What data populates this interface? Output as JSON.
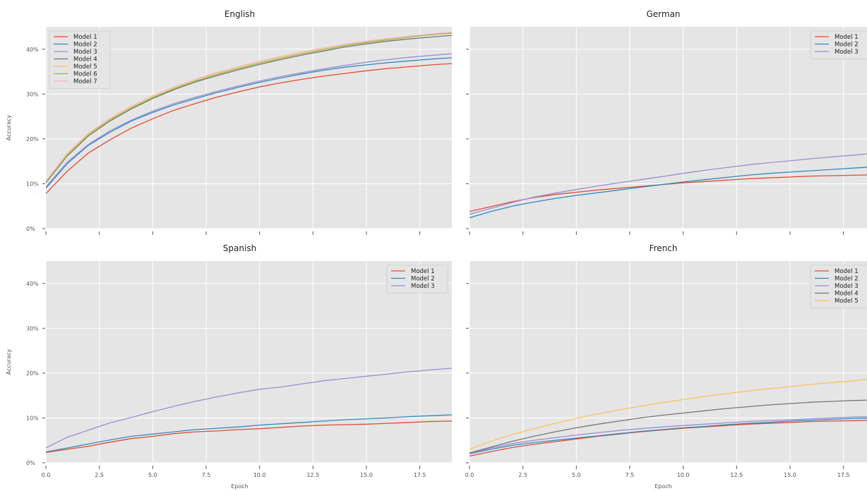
{
  "chart_data": [
    {
      "type": "line",
      "title": "English",
      "xlabel": "",
      "ylabel": "Accuracy",
      "xlim": [
        0,
        19
      ],
      "ylim": [
        0,
        45
      ],
      "x_ticks": [
        0,
        2.5,
        5,
        7.5,
        10,
        12.5,
        15,
        17.5
      ],
      "x_tick_labels": [],
      "y_ticks": [
        0,
        10,
        20,
        30,
        40
      ],
      "y_tick_labels": [
        "0%",
        "10%",
        "20%",
        "30%",
        "40%"
      ],
      "legend_position": "upper-left",
      "x": [
        0,
        1,
        2,
        3,
        4,
        5,
        6,
        7,
        8,
        9,
        10,
        11,
        12,
        13,
        14,
        15,
        16,
        17,
        18,
        19
      ],
      "series": [
        {
          "name": "Model 1",
          "color": "#E24A33",
          "values": [
            7.8,
            12.8,
            16.9,
            19.8,
            22.4,
            24.5,
            26.4,
            27.9,
            29.3,
            30.5,
            31.6,
            32.5,
            33.3,
            34.0,
            34.6,
            35.2,
            35.7,
            36.1,
            36.5,
            36.8
          ]
        },
        {
          "name": "Model 2",
          "color": "#348ABD",
          "values": [
            9.0,
            14.5,
            18.6,
            21.5,
            24.0,
            25.9,
            27.6,
            29.0,
            30.3,
            31.5,
            32.6,
            33.6,
            34.5,
            35.3,
            36.0,
            36.5,
            37.0,
            37.4,
            37.8,
            38.1
          ]
        },
        {
          "name": "Model 3",
          "color": "#988ED5",
          "values": [
            9.3,
            14.8,
            18.8,
            21.8,
            24.2,
            26.2,
            27.9,
            29.3,
            30.6,
            31.8,
            32.9,
            33.9,
            34.8,
            35.6,
            36.4,
            37.1,
            37.7,
            38.2,
            38.6,
            39.0
          ]
        },
        {
          "name": "Model 4",
          "color": "#777777",
          "values": [
            10.2,
            16.2,
            20.7,
            24.0,
            26.7,
            29.0,
            31.0,
            32.7,
            34.1,
            35.4,
            36.6,
            37.7,
            38.7,
            39.6,
            40.5,
            41.2,
            41.8,
            42.3,
            42.7,
            43.1
          ]
        },
        {
          "name": "Model 5",
          "color": "#FBC15E",
          "values": [
            10.5,
            16.7,
            21.2,
            24.5,
            27.2,
            29.5,
            31.5,
            33.2,
            34.7,
            36.0,
            37.2,
            38.3,
            39.3,
            40.2,
            41.0,
            41.7,
            42.3,
            42.8,
            43.3,
            43.8
          ]
        },
        {
          "name": "Model 6",
          "color": "#8EBA42",
          "values": [
            10.3,
            16.4,
            20.9,
            24.2,
            26.9,
            29.2,
            31.2,
            32.9,
            34.4,
            35.7,
            36.9,
            38.0,
            39.0,
            39.9,
            40.8,
            41.5,
            42.1,
            42.7,
            43.2,
            43.6
          ]
        },
        {
          "name": "Model 7",
          "color": "#FFB5B8",
          "values": [
            10.6,
            16.8,
            21.3,
            24.6,
            27.3,
            29.6,
            31.6,
            33.3,
            34.8,
            36.1,
            37.3,
            38.4,
            39.4,
            40.3,
            41.1,
            41.8,
            42.4,
            42.9,
            43.4,
            43.8
          ]
        }
      ]
    },
    {
      "type": "line",
      "title": "German",
      "xlabel": "",
      "ylabel": "",
      "xlim": [
        0,
        19
      ],
      "ylim": [
        0,
        45
      ],
      "x_ticks": [
        0,
        2.5,
        5,
        7.5,
        10,
        12.5,
        15,
        17.5
      ],
      "x_tick_labels": [],
      "y_ticks": [
        0,
        10,
        20,
        30,
        40
      ],
      "y_tick_labels": [],
      "legend_position": "upper-right",
      "x": [
        0,
        1,
        2,
        3,
        4,
        5,
        6,
        7,
        8,
        9,
        10,
        11,
        12,
        13,
        14,
        15,
        16,
        17,
        18,
        19
      ],
      "series": [
        {
          "name": "Model 1",
          "color": "#E24A33",
          "values": [
            3.8,
            4.9,
            6.0,
            6.9,
            7.6,
            8.1,
            8.6,
            9.0,
            9.4,
            9.8,
            10.2,
            10.5,
            10.8,
            11.1,
            11.3,
            11.5,
            11.7,
            11.8,
            11.9,
            12.0
          ]
        },
        {
          "name": "Model 2",
          "color": "#348ABD",
          "values": [
            2.4,
            3.8,
            5.0,
            5.9,
            6.7,
            7.4,
            8.0,
            8.6,
            9.2,
            9.8,
            10.4,
            10.9,
            11.4,
            11.9,
            12.3,
            12.6,
            12.9,
            13.2,
            13.5,
            13.8
          ]
        },
        {
          "name": "Model 3",
          "color": "#988ED5",
          "values": [
            3.2,
            4.5,
            5.8,
            7.0,
            7.9,
            8.7,
            9.5,
            10.2,
            10.9,
            11.6,
            12.3,
            13.0,
            13.6,
            14.2,
            14.7,
            15.1,
            15.6,
            16.0,
            16.4,
            16.8
          ]
        }
      ]
    },
    {
      "type": "line",
      "title": "Spanish",
      "xlabel": "Epoch",
      "ylabel": "Accuracy",
      "xlim": [
        0,
        19
      ],
      "ylim": [
        0,
        45
      ],
      "x_ticks": [
        0,
        2.5,
        5,
        7.5,
        10,
        12.5,
        15,
        17.5
      ],
      "x_tick_labels": [
        "0.0",
        "2.5",
        "5.0",
        "7.5",
        "10.0",
        "12.5",
        "15.0",
        "17.5"
      ],
      "y_ticks": [
        0,
        10,
        20,
        30,
        40
      ],
      "y_tick_labels": [
        "0%",
        "10%",
        "20%",
        "30%",
        "40%"
      ],
      "legend_position": "upper-right",
      "x": [
        0,
        1,
        2,
        3,
        4,
        5,
        6,
        7,
        8,
        9,
        10,
        11,
        12,
        13,
        14,
        15,
        16,
        17,
        18,
        19
      ],
      "series": [
        {
          "name": "Model 1",
          "color": "#E24A33",
          "values": [
            2.3,
            3.0,
            3.7,
            4.6,
            5.4,
            5.9,
            6.5,
            6.9,
            7.1,
            7.4,
            7.6,
            7.9,
            8.2,
            8.4,
            8.5,
            8.6,
            8.8,
            9.0,
            9.2,
            9.3
          ]
        },
        {
          "name": "Model 2",
          "color": "#348ABD",
          "values": [
            2.4,
            3.3,
            4.2,
            5.1,
            5.9,
            6.4,
            6.9,
            7.4,
            7.7,
            8.0,
            8.4,
            8.7,
            9.0,
            9.3,
            9.6,
            9.8,
            10.0,
            10.3,
            10.5,
            10.7
          ]
        },
        {
          "name": "Model 3",
          "color": "#988ED5",
          "values": [
            3.3,
            5.7,
            7.3,
            8.9,
            10.1,
            11.4,
            12.6,
            13.7,
            14.7,
            15.6,
            16.4,
            16.9,
            17.6,
            18.3,
            18.8,
            19.3,
            19.8,
            20.3,
            20.7,
            21.1
          ]
        }
      ]
    },
    {
      "type": "line",
      "title": "French",
      "xlabel": "Epoch",
      "ylabel": "",
      "xlim": [
        0,
        19
      ],
      "ylim": [
        0,
        45
      ],
      "x_ticks": [
        0,
        2.5,
        5,
        7.5,
        10,
        12.5,
        15,
        17.5
      ],
      "x_tick_labels": [
        "0.0",
        "2.5",
        "5.0",
        "7.5",
        "10.0",
        "12.5",
        "15.0",
        "17.5"
      ],
      "y_ticks": [
        0,
        10,
        20,
        30,
        40
      ],
      "y_tick_labels": [],
      "legend_position": "upper-right",
      "x": [
        0,
        1,
        2,
        3,
        4,
        5,
        6,
        7,
        8,
        9,
        10,
        11,
        12,
        13,
        14,
        15,
        16,
        17,
        18,
        19
      ],
      "series": [
        {
          "name": "Model 1",
          "color": "#E24A33",
          "values": [
            1.5,
            2.5,
            3.4,
            4.1,
            4.7,
            5.3,
            5.9,
            6.4,
            6.9,
            7.3,
            7.7,
            8.0,
            8.3,
            8.6,
            8.8,
            9.0,
            9.2,
            9.3,
            9.4,
            9.5
          ]
        },
        {
          "name": "Model 2",
          "color": "#348ABD",
          "values": [
            2.0,
            3.0,
            3.9,
            4.5,
            5.0,
            5.5,
            6.0,
            6.5,
            7.0,
            7.4,
            7.8,
            8.1,
            8.5,
            8.8,
            9.0,
            9.3,
            9.5,
            9.7,
            9.9,
            10.0
          ]
        },
        {
          "name": "Model 3",
          "color": "#988ED5",
          "values": [
            2.1,
            3.3,
            4.3,
            5.0,
            5.6,
            6.2,
            6.7,
            7.2,
            7.6,
            8.0,
            8.3,
            8.6,
            8.9,
            9.2,
            9.4,
            9.6,
            9.8,
            10.0,
            10.2,
            10.3
          ]
        },
        {
          "name": "Model 4",
          "color": "#777777",
          "values": [
            2.2,
            3.5,
            4.8,
            5.9,
            6.9,
            7.8,
            8.6,
            9.3,
            10.0,
            10.6,
            11.1,
            11.6,
            12.1,
            12.5,
            12.9,
            13.2,
            13.5,
            13.7,
            13.9,
            14.0
          ]
        },
        {
          "name": "Model 5",
          "color": "#FBC15E",
          "values": [
            3.0,
            4.8,
            6.3,
            7.6,
            8.8,
            9.9,
            10.9,
            11.8,
            12.6,
            13.4,
            14.1,
            14.8,
            15.4,
            16.0,
            16.5,
            17.0,
            17.5,
            17.9,
            18.3,
            18.8
          ]
        }
      ]
    }
  ]
}
